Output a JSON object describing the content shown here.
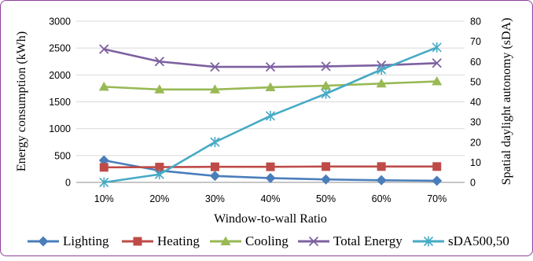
{
  "chart_data": {
    "type": "line",
    "categories": [
      "10%",
      "20%",
      "30%",
      "40%",
      "50%",
      "60%",
      "70%"
    ],
    "xlabel": "Window-to-wall Ratio",
    "ylabel_left": "Energy consumption (kWh)",
    "ylabel_right": "Spatial daylight autonomy (sDA)",
    "ylim_left": [
      0,
      3000
    ],
    "yticks_left": [
      0,
      500,
      1000,
      1500,
      2000,
      2500,
      3000
    ],
    "ylim_right": [
      0,
      80
    ],
    "yticks_right": [
      0,
      10,
      20,
      30,
      40,
      50,
      60,
      70,
      80
    ],
    "grid": true,
    "legend_position": "bottom",
    "series": [
      {
        "name": "Lighting",
        "axis": "left",
        "color": "#4a7ebb",
        "marker": "diamond",
        "values": [
          410,
          220,
          120,
          80,
          55,
          40,
          30
        ]
      },
      {
        "name": "Heating",
        "axis": "left",
        "color": "#be4b48",
        "marker": "square",
        "values": [
          280,
          285,
          290,
          290,
          295,
          295,
          295
        ]
      },
      {
        "name": "Cooling",
        "axis": "left",
        "color": "#98b954",
        "marker": "triangle",
        "values": [
          1780,
          1730,
          1730,
          1770,
          1800,
          1840,
          1880
        ]
      },
      {
        "name": "Total Energy",
        "axis": "left",
        "color": "#7d60a0",
        "marker": "x",
        "values": [
          2480,
          2250,
          2150,
          2150,
          2160,
          2180,
          2220
        ]
      },
      {
        "name": "sDA500,50",
        "axis": "right",
        "color": "#46aac5",
        "marker": "star",
        "values": [
          0,
          4,
          20,
          33,
          44,
          56,
          67
        ]
      }
    ]
  }
}
